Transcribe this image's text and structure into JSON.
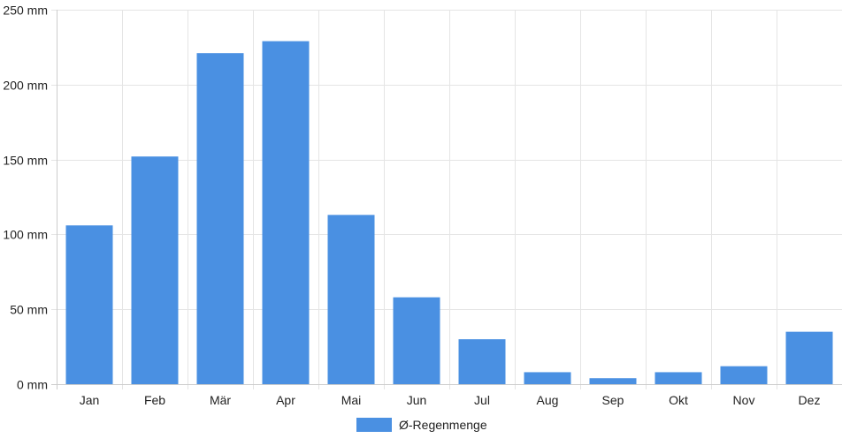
{
  "colors": {
    "bar": "#4a90e2",
    "grid": "#e5e5e5",
    "axis": "#cccccc",
    "text": "#222222"
  },
  "chart_data": {
    "type": "bar",
    "categories": [
      "Jan",
      "Feb",
      "Mär",
      "Apr",
      "Mai",
      "Jun",
      "Jul",
      "Aug",
      "Sep",
      "Okt",
      "Nov",
      "Dez"
    ],
    "series": [
      {
        "name": "Ø-Regenmenge",
        "values": [
          106,
          152,
          221,
          229,
          113,
          58,
          30,
          8,
          4,
          8,
          12,
          35
        ]
      }
    ],
    "unit": "mm",
    "y_ticks": [
      0,
      50,
      100,
      150,
      200,
      250
    ],
    "ylim": [
      0,
      250
    ],
    "grid": true,
    "legend": "bottom-center"
  }
}
